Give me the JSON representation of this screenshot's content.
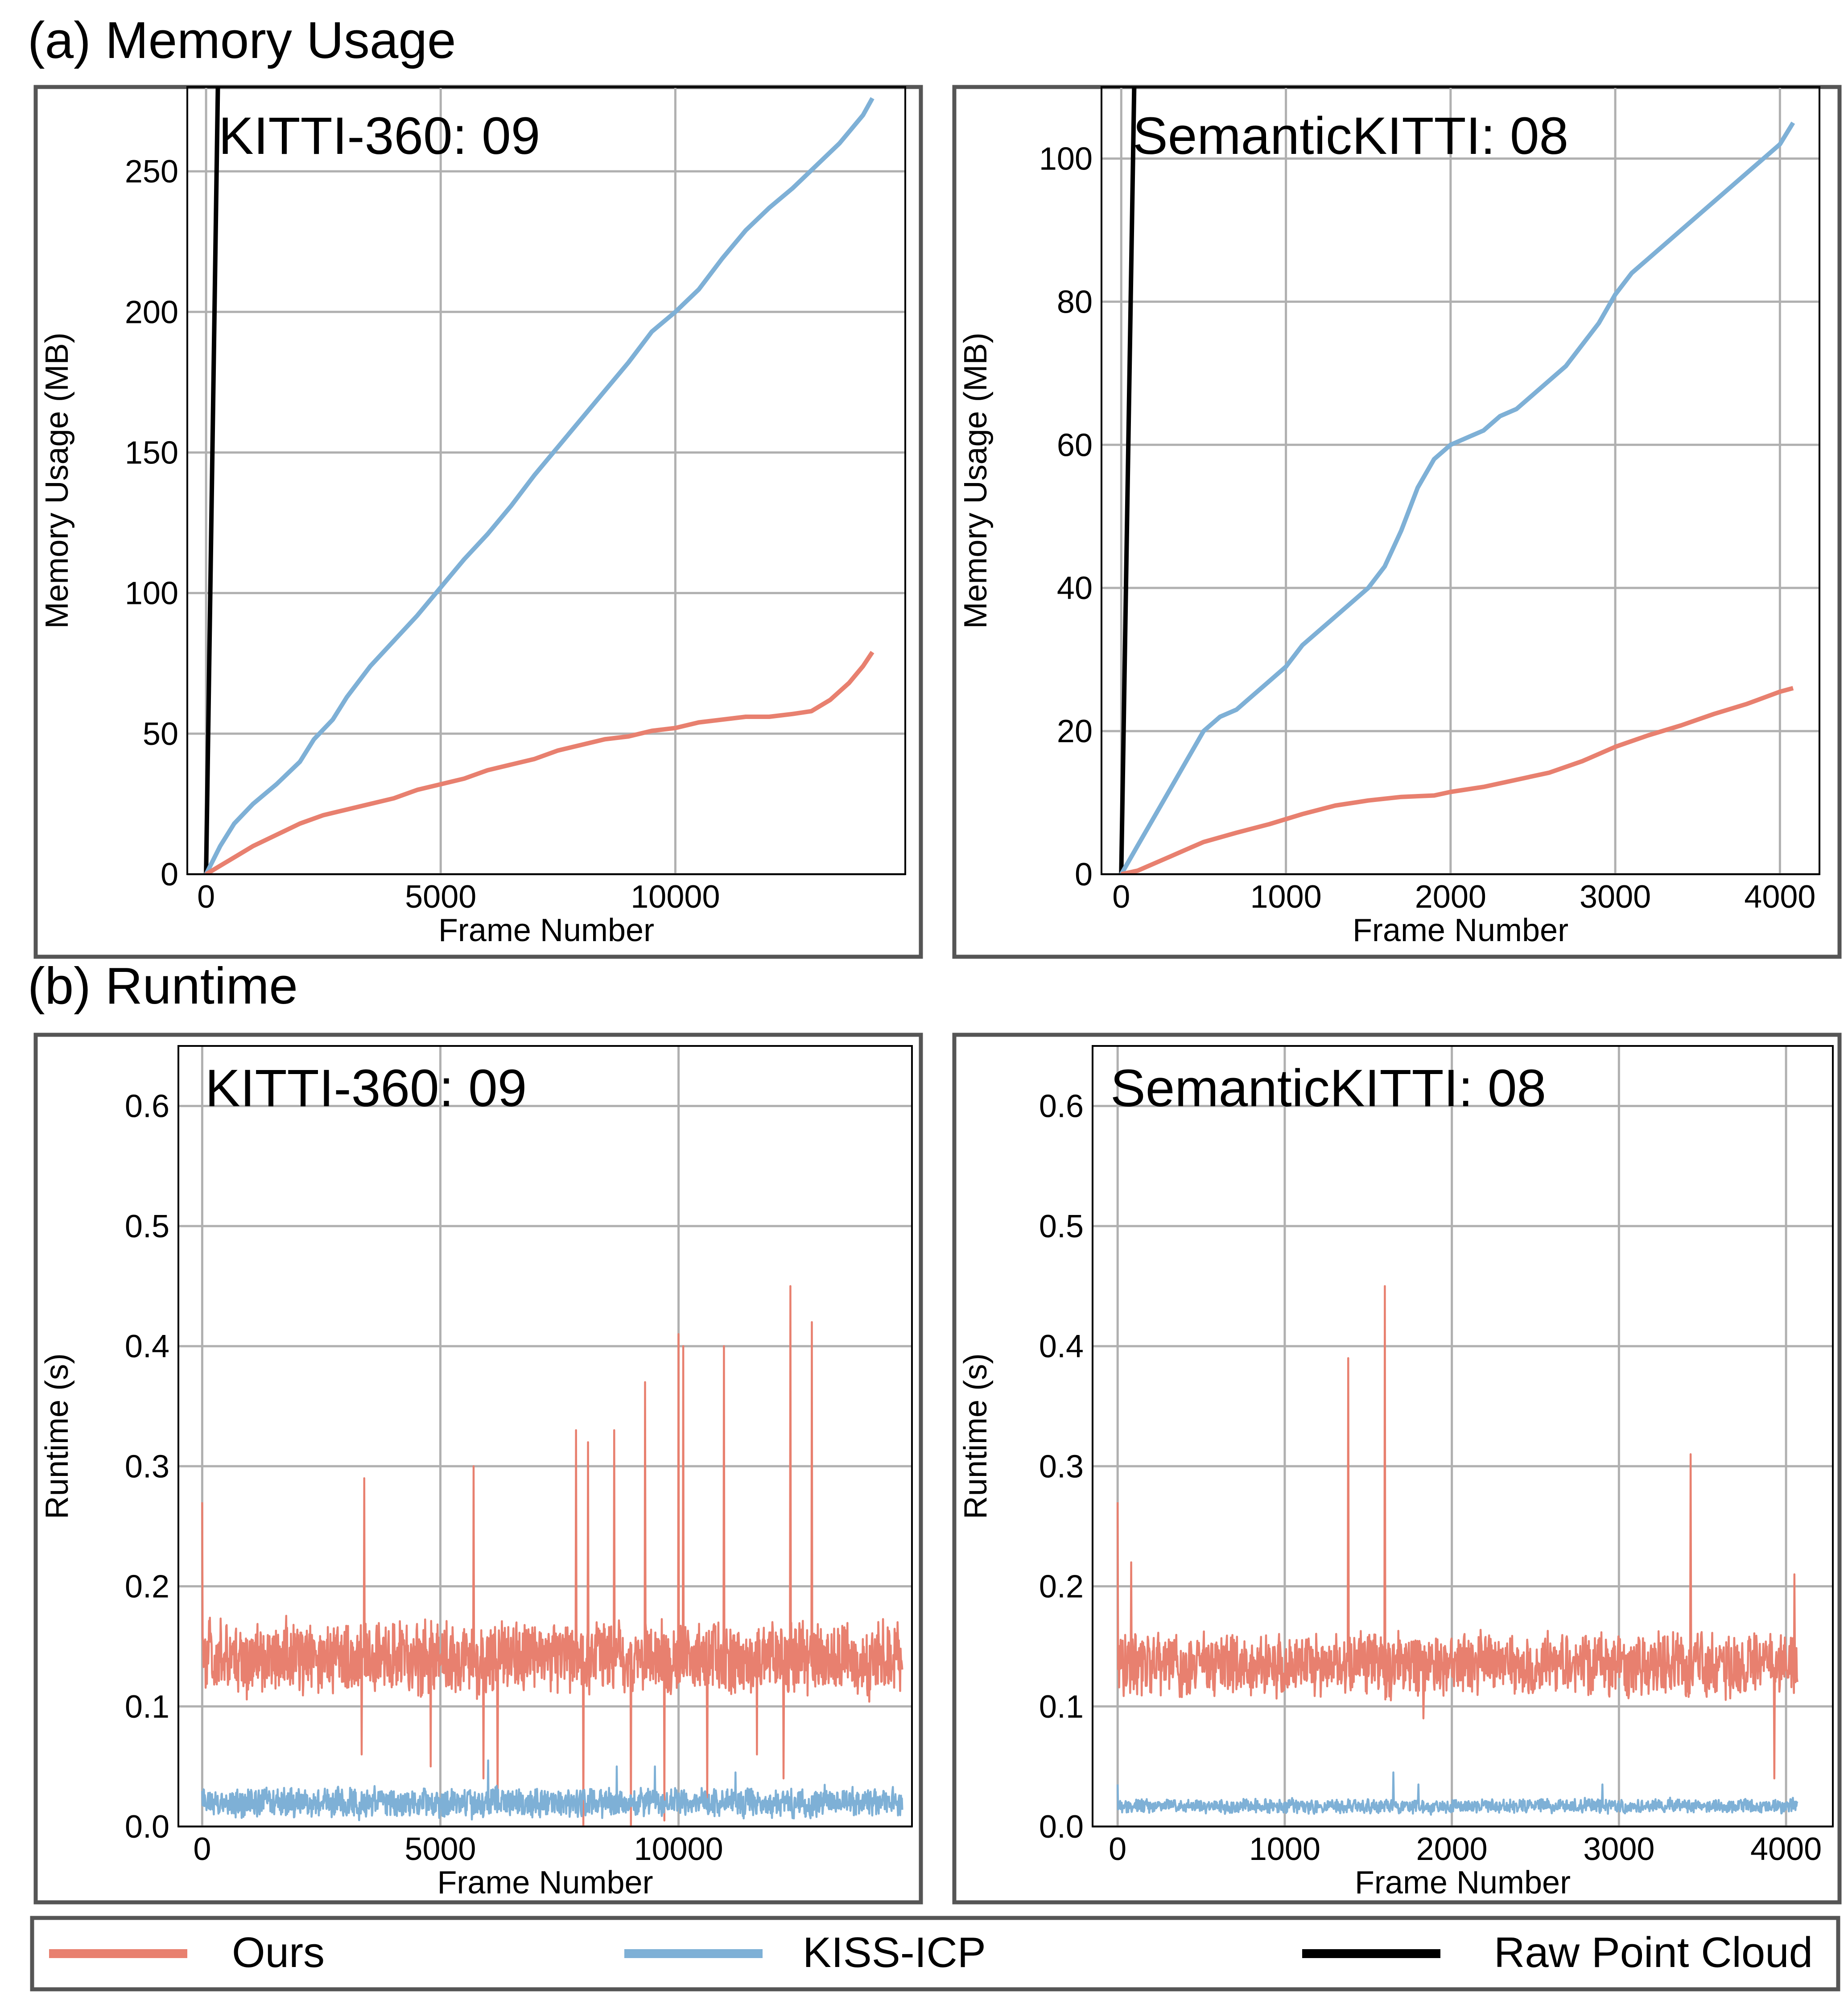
{
  "sections": {
    "a": "(a) Memory Usage",
    "b": "(b) Runtime"
  },
  "colors": {
    "ours": "#E8806F",
    "kiss": "#7EB0D6",
    "raw": "#000000",
    "grid": "#B0B0B0",
    "frame": "#555555"
  },
  "legend": [
    {
      "key": "ours",
      "label": "Ours"
    },
    {
      "key": "kiss",
      "label": "KISS-ICP"
    },
    {
      "key": "raw",
      "label": "Raw Point Cloud"
    }
  ],
  "chart_data": [
    {
      "id": "mem_kitti",
      "type": "line",
      "title": "KITTI-360: 09",
      "xlabel": "Frame Number",
      "ylabel": "Memory Usage (MB)",
      "xlim": [
        -400,
        14900
      ],
      "ylim": [
        0,
        280
      ],
      "xticks": [
        {
          "v": 0,
          "l": "0"
        },
        {
          "v": 5000,
          "l": "5000"
        },
        {
          "v": 10000,
          "l": "10000"
        }
      ],
      "yticks": [
        {
          "v": 0,
          "l": "0"
        },
        {
          "v": 50,
          "l": "50"
        },
        {
          "v": 100,
          "l": "100"
        },
        {
          "v": 150,
          "l": "150"
        },
        {
          "v": 200,
          "l": "200"
        },
        {
          "v": 250,
          "l": "250"
        }
      ],
      "series": [
        {
          "name": "Raw Point Cloud",
          "key": "raw",
          "x": [
            0,
            260
          ],
          "y": [
            0,
            290
          ]
        },
        {
          "name": "KISS-ICP",
          "key": "kiss",
          "x": [
            0,
            300,
            600,
            1000,
            1500,
            2000,
            2300,
            2700,
            3000,
            3500,
            4000,
            4500,
            5000,
            5500,
            6000,
            6500,
            7000,
            7500,
            8000,
            8500,
            9000,
            9500,
            10000,
            10500,
            11000,
            11500,
            12000,
            12500,
            13000,
            13500,
            14000,
            14200
          ],
          "y": [
            0,
            10,
            18,
            25,
            32,
            40,
            48,
            55,
            63,
            74,
            83,
            92,
            102,
            112,
            121,
            131,
            142,
            152,
            162,
            172,
            182,
            193,
            200,
            208,
            219,
            229,
            237,
            244,
            252,
            260,
            270,
            276
          ]
        },
        {
          "name": "Ours",
          "key": "ours",
          "x": [
            0,
            300,
            700,
            1000,
            1500,
            2000,
            2500,
            3000,
            3500,
            4000,
            4500,
            5000,
            5500,
            6000,
            6500,
            7000,
            7500,
            8000,
            8500,
            9000,
            9500,
            10000,
            10500,
            11000,
            11500,
            12000,
            12500,
            12900,
            13300,
            13700,
            14000,
            14200
          ],
          "y": [
            0,
            3,
            7,
            10,
            14,
            18,
            21,
            23,
            25,
            27,
            30,
            32,
            34,
            37,
            39,
            41,
            44,
            46,
            48,
            49,
            51,
            52,
            54,
            55,
            56,
            56,
            57,
            58,
            62,
            68,
            74,
            79
          ]
        }
      ]
    },
    {
      "id": "mem_semkitti",
      "type": "line",
      "title": "SemanticKITTI: 08",
      "xlabel": "Frame Number",
      "ylabel": "Memory Usage (MB)",
      "xlim": [
        -120,
        4240
      ],
      "ylim": [
        0,
        110
      ],
      "xticks": [
        {
          "v": 0,
          "l": "0"
        },
        {
          "v": 1000,
          "l": "1000"
        },
        {
          "v": 2000,
          "l": "2000"
        },
        {
          "v": 3000,
          "l": "3000"
        },
        {
          "v": 4000,
          "l": "4000"
        }
      ],
      "yticks": [
        {
          "v": 0,
          "l": "0"
        },
        {
          "v": 20,
          "l": "20"
        },
        {
          "v": 40,
          "l": "40"
        },
        {
          "v": 60,
          "l": "60"
        },
        {
          "v": 80,
          "l": "80"
        },
        {
          "v": 100,
          "l": "100"
        }
      ],
      "series": [
        {
          "name": "Raw Point Cloud",
          "key": "raw",
          "x": [
            0,
            80
          ],
          "y": [
            0,
            112
          ]
        },
        {
          "name": "KISS-ICP",
          "key": "kiss",
          "x": [
            0,
            100,
            200,
            300,
            400,
            500,
            600,
            700,
            800,
            900,
            1000,
            1100,
            1200,
            1300,
            1400,
            1500,
            1600,
            1700,
            1800,
            1900,
            2000,
            2100,
            2200,
            2300,
            2400,
            2500,
            2600,
            2700,
            2800,
            2900,
            3000,
            3100,
            3200,
            3300,
            3400,
            3500,
            3600,
            3700,
            3800,
            3900,
            4000,
            4080
          ],
          "y": [
            0,
            4,
            8,
            12,
            16,
            20,
            22,
            23,
            25,
            27,
            29,
            32,
            34,
            36,
            38,
            40,
            43,
            48,
            54,
            58,
            60,
            61,
            62,
            64,
            65,
            67,
            69,
            71,
            74,
            77,
            81,
            84,
            86,
            88,
            90,
            92,
            94,
            96,
            98,
            100,
            102,
            105
          ]
        },
        {
          "name": "Ours",
          "key": "ours",
          "x": [
            0,
            100,
            200,
            300,
            400,
            500,
            700,
            900,
            1100,
            1300,
            1500,
            1700,
            1900,
            2000,
            2200,
            2400,
            2600,
            2800,
            3000,
            3200,
            3400,
            3600,
            3800,
            4000,
            4080
          ],
          "y": [
            0,
            0.5,
            1.5,
            2.5,
            3.5,
            4.5,
            5.8,
            7.0,
            8.4,
            9.6,
            10.3,
            10.8,
            11.0,
            11.5,
            12.2,
            13.2,
            14.2,
            15.8,
            17.8,
            19.4,
            20.8,
            22.4,
            23.8,
            25.5,
            26.0
          ]
        }
      ]
    },
    {
      "id": "rt_kitti",
      "type": "line",
      "title": "KITTI-360: 09",
      "xlabel": "Frame Number",
      "ylabel": "Runtime (s)",
      "xlim": [
        -500,
        14900
      ],
      "ylim": [
        0,
        0.65
      ],
      "xticks": [
        {
          "v": 0,
          "l": "0"
        },
        {
          "v": 5000,
          "l": "5000"
        },
        {
          "v": 10000,
          "l": "10000"
        }
      ],
      "yticks": [
        {
          "v": 0,
          "l": "0.0"
        },
        {
          "v": 0.1,
          "l": "0.1"
        },
        {
          "v": 0.2,
          "l": "0.2"
        },
        {
          "v": 0.3,
          "l": "0.3"
        },
        {
          "v": 0.4,
          "l": "0.4"
        },
        {
          "v": 0.5,
          "l": "0.5"
        },
        {
          "v": 0.6,
          "l": "0.6"
        }
      ],
      "series": [
        {
          "name": "Ours",
          "key": "ours",
          "n": 14700,
          "base": 0.14,
          "noise": 0.025,
          "spikes": [
            [
              0,
              0.27
            ],
            [
              3400,
              0.29
            ],
            [
              3350,
              0.06
            ],
            [
              4800,
              0.05
            ],
            [
              5700,
              0.3
            ],
            [
              5900,
              0.04
            ],
            [
              6200,
              0.015
            ],
            [
              7850,
              0.33
            ],
            [
              8000,
              0.0
            ],
            [
              8100,
              0.32
            ],
            [
              8650,
              0.33
            ],
            [
              9000,
              0.0
            ],
            [
              9300,
              0.37
            ],
            [
              9700,
              0.005
            ],
            [
              10000,
              0.41
            ],
            [
              10100,
              0.4
            ],
            [
              10600,
              0.02
            ],
            [
              10950,
              0.4
            ],
            [
              11650,
              0.06
            ],
            [
              12200,
              0.04
            ],
            [
              12350,
              0.45
            ],
            [
              12800,
              0.42
            ]
          ]
        },
        {
          "name": "KISS-ICP",
          "key": "kiss",
          "n": 14700,
          "base": 0.02,
          "noise": 0.01,
          "spikes": [
            [
              6000,
              0.055
            ],
            [
              9500,
              0.05
            ],
            [
              8700,
              0.05
            ],
            [
              11200,
              0.045
            ]
          ]
        }
      ]
    },
    {
      "id": "rt_semkitti",
      "type": "line",
      "title": "SemanticKITTI: 08",
      "xlabel": "Frame Number",
      "ylabel": "Runtime (s)",
      "xlim": [
        -150,
        4280
      ],
      "ylim": [
        0,
        0.65
      ],
      "xticks": [
        {
          "v": 0,
          "l": "0"
        },
        {
          "v": 1000,
          "l": "1000"
        },
        {
          "v": 2000,
          "l": "2000"
        },
        {
          "v": 3000,
          "l": "3000"
        },
        {
          "v": 4000,
          "l": "4000"
        }
      ],
      "yticks": [
        {
          "v": 0,
          "l": "0.0"
        },
        {
          "v": 0.1,
          "l": "0.1"
        },
        {
          "v": 0.2,
          "l": "0.2"
        },
        {
          "v": 0.3,
          "l": "0.3"
        },
        {
          "v": 0.4,
          "l": "0.4"
        },
        {
          "v": 0.5,
          "l": "0.5"
        },
        {
          "v": 0.6,
          "l": "0.6"
        }
      ],
      "series": [
        {
          "name": "Ours",
          "key": "ours",
          "n": 4070,
          "base": 0.135,
          "noise": 0.022,
          "spikes": [
            [
              0,
              0.27
            ],
            [
              80,
              0.22
            ],
            [
              1380,
              0.39
            ],
            [
              1600,
              0.45
            ],
            [
              1830,
              0.09
            ],
            [
              3430,
              0.31
            ],
            [
              3930,
              0.04
            ],
            [
              4050,
              0.21
            ]
          ]
        },
        {
          "name": "KISS-ICP",
          "key": "kiss",
          "n": 4070,
          "base": 0.017,
          "noise": 0.005,
          "spikes": [
            [
              0,
              0.035
            ],
            [
              1650,
              0.045
            ],
            [
              1800,
              0.035
            ],
            [
              2900,
              0.035
            ],
            [
              4070,
              0.03
            ]
          ]
        }
      ]
    }
  ]
}
